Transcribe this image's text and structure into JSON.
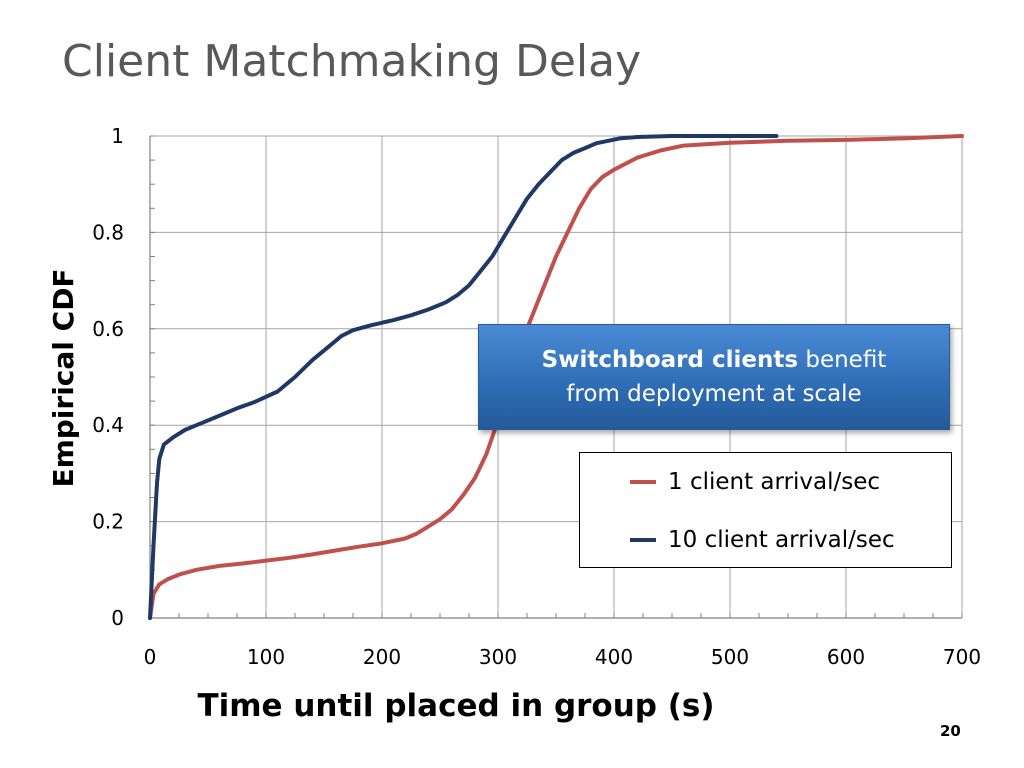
{
  "slide": {
    "title": "Client Matchmaking Delay",
    "page_number": "20"
  },
  "callout": {
    "bold_text": "Switchboard clients",
    "text_1": " benefit",
    "text_2": "from deployment at scale"
  },
  "chart_data": {
    "type": "line",
    "title": "",
    "xlabel": "Time until placed in group (s)",
    "ylabel": "Empirical CDF",
    "xlim": [
      0,
      700
    ],
    "ylim": [
      0,
      1
    ],
    "xticks": [
      "0",
      "100",
      "200",
      "300",
      "400",
      "500",
      "600",
      "700"
    ],
    "yticks": [
      "0",
      "0.2",
      "0.4",
      "0.6",
      "0.8",
      "1"
    ],
    "grid": true,
    "legend_position": "bottom-right",
    "series": [
      {
        "name": "1 client arrival/sec",
        "color": "#c0504d",
        "x": [
          0,
          3,
          8,
          15,
          25,
          40,
          60,
          80,
          100,
          120,
          140,
          160,
          180,
          200,
          220,
          230,
          240,
          250,
          260,
          270,
          280,
          290,
          300,
          310,
          320,
          330,
          340,
          350,
          360,
          370,
          380,
          390,
          400,
          420,
          440,
          460,
          500,
          550,
          600,
          650,
          700
        ],
        "y": [
          0,
          0.05,
          0.07,
          0.08,
          0.09,
          0.1,
          0.108,
          0.113,
          0.119,
          0.125,
          0.132,
          0.14,
          0.148,
          0.155,
          0.165,
          0.175,
          0.19,
          0.205,
          0.225,
          0.255,
          0.29,
          0.34,
          0.41,
          0.49,
          0.57,
          0.63,
          0.69,
          0.75,
          0.8,
          0.85,
          0.89,
          0.915,
          0.93,
          0.955,
          0.97,
          0.98,
          0.986,
          0.99,
          0.992,
          0.995,
          1.0
        ]
      },
      {
        "name": "10 client arrival/sec",
        "color": "#1f3864",
        "x": [
          0,
          3,
          6,
          8,
          12,
          20,
          30,
          45,
          60,
          75,
          90,
          110,
          125,
          140,
          155,
          165,
          175,
          190,
          210,
          225,
          240,
          255,
          265,
          275,
          285,
          295,
          305,
          315,
          325,
          335,
          345,
          355,
          365,
          375,
          385,
          395,
          405,
          420,
          450,
          500,
          540
        ],
        "y": [
          0,
          0.15,
          0.28,
          0.33,
          0.36,
          0.375,
          0.39,
          0.405,
          0.42,
          0.435,
          0.448,
          0.47,
          0.5,
          0.535,
          0.565,
          0.585,
          0.597,
          0.607,
          0.618,
          0.628,
          0.64,
          0.655,
          0.67,
          0.69,
          0.72,
          0.75,
          0.79,
          0.83,
          0.87,
          0.9,
          0.925,
          0.95,
          0.965,
          0.975,
          0.985,
          0.99,
          0.995,
          0.998,
          1.0,
          1.0,
          1.0
        ]
      }
    ]
  }
}
